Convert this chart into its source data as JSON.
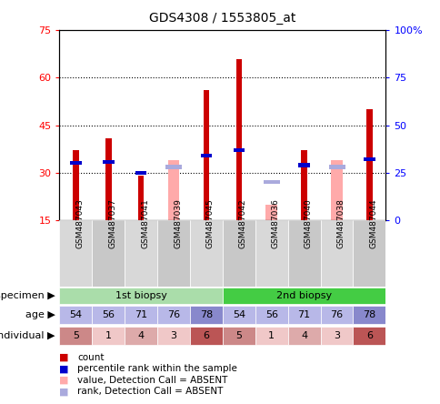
{
  "title": "GDS4308 / 1553805_at",
  "samples": [
    "GSM487043",
    "GSM487037",
    "GSM487041",
    "GSM487039",
    "GSM487045",
    "GSM487042",
    "GSM487036",
    "GSM487040",
    "GSM487038",
    "GSM487044"
  ],
  "count_values": [
    37,
    41,
    29,
    null,
    56,
    66,
    null,
    37,
    null,
    50
  ],
  "percentile_rank": [
    30,
    30.5,
    25,
    null,
    34,
    37,
    null,
    29,
    null,
    32
  ],
  "absent_value": [
    null,
    null,
    null,
    34,
    null,
    null,
    20,
    null,
    34,
    null
  ],
  "absent_rank": [
    null,
    null,
    null,
    28,
    null,
    null,
    20,
    null,
    28,
    null
  ],
  "ylim_left": [
    15,
    75
  ],
  "ylim_right": [
    0,
    100
  ],
  "yticks_left": [
    15,
    30,
    45,
    60,
    75
  ],
  "yticks_right": [
    0,
    25,
    50,
    75,
    100
  ],
  "ytick_labels_left": [
    "15",
    "30",
    "45",
    "60",
    "75"
  ],
  "ytick_labels_right": [
    "0",
    "25",
    "50",
    "75",
    "100%"
  ],
  "hlines": [
    30,
    45,
    60
  ],
  "age_values": [
    54,
    56,
    71,
    76,
    78,
    54,
    56,
    71,
    76,
    78
  ],
  "individual_values": [
    5,
    1,
    4,
    3,
    6,
    5,
    1,
    4,
    3,
    6
  ],
  "biopsy_groups": [
    {
      "label": "1st biopsy",
      "start": 0,
      "end": 5,
      "color": "#aaddaa"
    },
    {
      "label": "2nd biopsy",
      "start": 5,
      "end": 10,
      "color": "#44cc44"
    }
  ],
  "age_colors_base": "#b8b8e8",
  "age_colors_dark": "#8888cc",
  "age_dark_indices": [
    4,
    9
  ],
  "individual_colors": [
    "#cc8888",
    "#f0c8c8",
    "#ddaaaa",
    "#f0c8c8",
    "#bb5555",
    "#cc8888",
    "#f0c8c8",
    "#ddaaaa",
    "#f0c8c8",
    "#bb5555"
  ],
  "bar_color_count": "#cc0000",
  "bar_color_rank": "#0000cc",
  "bar_color_absent_val": "#ffaaaa",
  "bar_color_absent_rank": "#aaaadd",
  "background_color": "#ffffff",
  "xlim": [
    -0.5,
    9.5
  ],
  "legend_items": [
    {
      "color": "#cc0000",
      "label": "count"
    },
    {
      "color": "#0000cc",
      "label": "percentile rank within the sample"
    },
    {
      "color": "#ffaaaa",
      "label": "value, Detection Call = ABSENT"
    },
    {
      "color": "#aaaadd",
      "label": "rank, Detection Call = ABSENT"
    }
  ]
}
